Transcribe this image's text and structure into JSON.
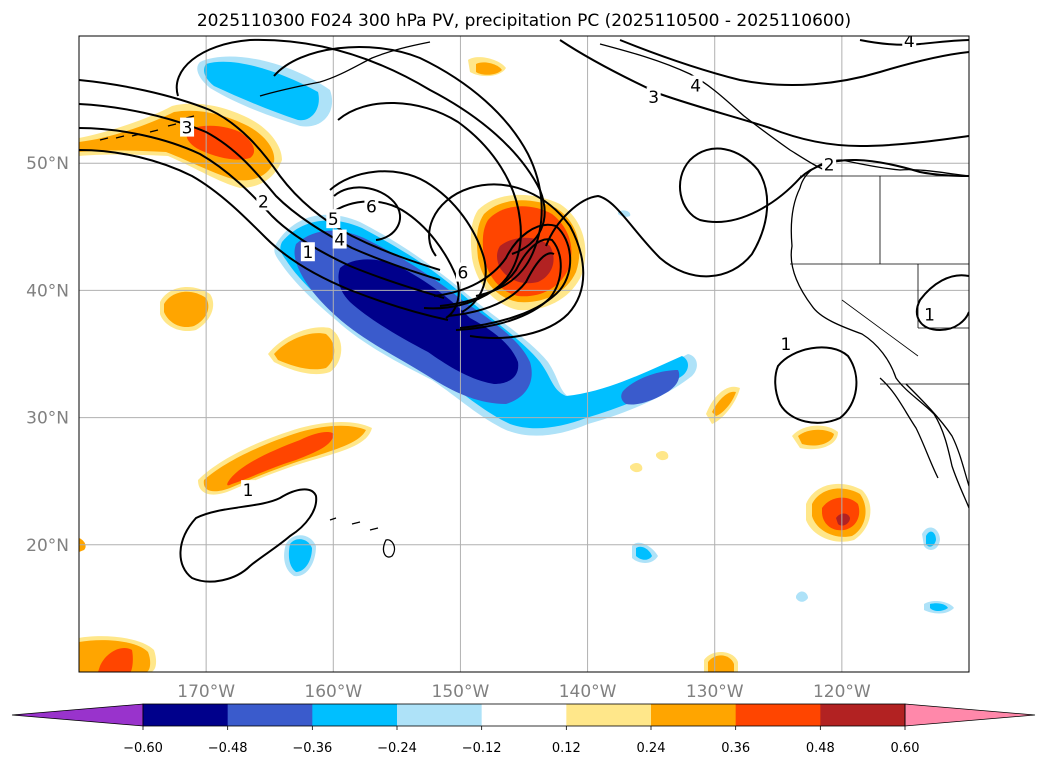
{
  "title": "2025110300 F024 300 hPa PV, precipitation PC (2025110500 - 2025110600)",
  "chart_data": {
    "type": "filled contour map",
    "title": "2025110300 F024 300 hPa PV, precipitation PC (2025110500 - 2025110600)",
    "fields": {
      "shaded": "precipitation PC",
      "contoured": "300 hPa PV"
    },
    "lon_range": [
      -180,
      -110
    ],
    "lat_range": [
      10,
      60
    ],
    "lon_ticks": [
      "170°W",
      "160°W",
      "150°W",
      "140°W",
      "130°W",
      "120°W"
    ],
    "lat_ticks": [
      "20°N",
      "30°N",
      "40°N",
      "50°N"
    ],
    "grid": true,
    "colorbar": {
      "orientation": "horizontal",
      "extend": "both",
      "levels": [
        -0.6,
        -0.48,
        -0.36,
        -0.24,
        -0.12,
        0.12,
        0.24,
        0.36,
        0.48,
        0.6
      ],
      "tick_labels": [
        "−0.60",
        "−0.48",
        "−0.36",
        "−0.24",
        "−0.12",
        "0.12",
        "0.24",
        "0.36",
        "0.48",
        "0.60"
      ],
      "colors": [
        "#9933cc",
        "#00008b",
        "#3a5bcc",
        "#00bfff",
        "#aee2f8",
        "#ffffff",
        "#ffe78a",
        "#ffa500",
        "#ff4500",
        "#b22222",
        "#ff88aa"
      ]
    },
    "contour_labels": [
      {
        "value": "3",
        "lon": -171.5,
        "lat": 52.8
      },
      {
        "value": "2",
        "lon": -165.5,
        "lat": 47.0
      },
      {
        "value": "1",
        "lon": -162.0,
        "lat": 43.0
      },
      {
        "value": "4",
        "lon": -159.5,
        "lat": 44.0
      },
      {
        "value": "5",
        "lon": -160.0,
        "lat": 45.6
      },
      {
        "value": "6",
        "lon": -157.0,
        "lat": 46.6
      },
      {
        "value": "6",
        "lon": -149.8,
        "lat": 41.4
      },
      {
        "value": "3",
        "lon": -134.8,
        "lat": 55.2
      },
      {
        "value": "4",
        "lon": -131.5,
        "lat": 56.1
      },
      {
        "value": "4",
        "lon": -114.7,
        "lat": 59.6
      },
      {
        "value": "2",
        "lon": -121.0,
        "lat": 49.9
      },
      {
        "value": "1",
        "lon": -113.1,
        "lat": 38.1
      },
      {
        "value": "1",
        "lon": -124.4,
        "lat": 35.8
      },
      {
        "value": "1",
        "lon": -166.7,
        "lat": 24.3
      }
    ]
  }
}
